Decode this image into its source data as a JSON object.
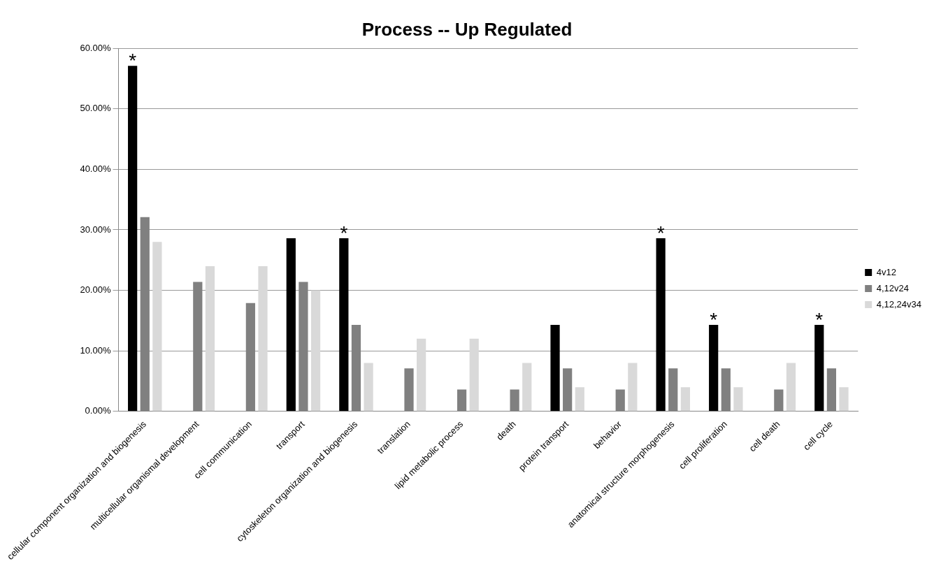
{
  "chart_data": {
    "type": "bar",
    "title": "Process -- Up Regulated",
    "categories": [
      "cellular component organization and biogenesis",
      "multicellular organismal development",
      "cell communication",
      "transport",
      "cytoskeleton organization and biogenesis",
      "translation",
      "lipid metabolic process",
      "death",
      "protein transport",
      "behavior",
      "anatomical structure morphogenesis",
      "cell proliferation",
      "cell death",
      "cell cycle"
    ],
    "series": [
      {
        "name": "4v12",
        "color": "#000000",
        "values": [
          57.1,
          0,
          0,
          28.6,
          28.6,
          0,
          0,
          0,
          14.3,
          0,
          28.6,
          14.3,
          0,
          14.3
        ],
        "value_labels": [
          "*",
          null,
          null,
          null,
          "*",
          null,
          null,
          null,
          null,
          null,
          "*",
          "*",
          null,
          "*"
        ]
      },
      {
        "name": "4,12v24",
        "color": "#808080",
        "values": [
          32.1,
          21.4,
          17.9,
          21.4,
          14.3,
          7.1,
          3.6,
          3.6,
          7.1,
          3.6,
          7.1,
          7.1,
          3.6,
          7.1
        ]
      },
      {
        "name": "4,12,24v34",
        "color": "#d9d9d9",
        "values": [
          28,
          24,
          24,
          20,
          8,
          12,
          12,
          8,
          4,
          8,
          4,
          4,
          8,
          4
        ]
      }
    ],
    "ylim": [
      0,
      60
    ],
    "yticks": [
      {
        "value": 0,
        "label": "0.00%"
      },
      {
        "value": 10,
        "label": "10.00%"
      },
      {
        "value": 20,
        "label": "20.00%"
      },
      {
        "value": 30,
        "label": "30.00%"
      },
      {
        "value": 40,
        "label": "40.00%"
      },
      {
        "value": 50,
        "label": "50.00%"
      },
      {
        "value": 60,
        "label": "60.00%"
      }
    ],
    "grid": "y",
    "legend": "right"
  }
}
